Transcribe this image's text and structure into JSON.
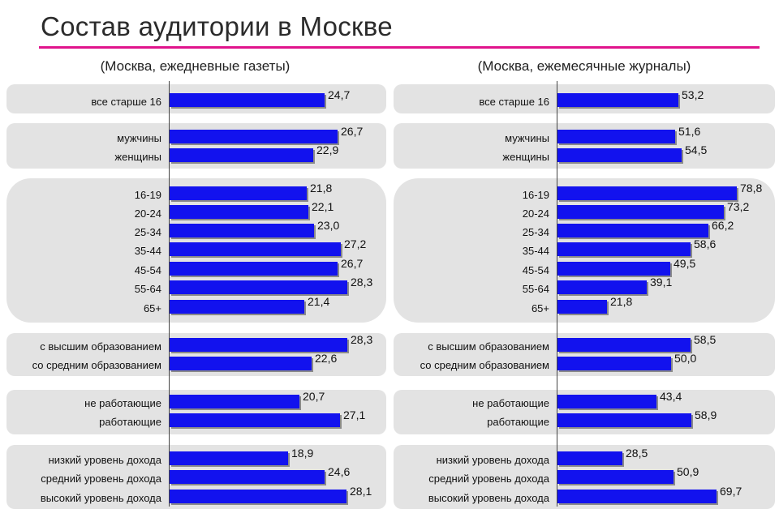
{
  "title": "Состав аудитории в Москве",
  "chart_data": [
    {
      "type": "bar",
      "orientation": "horizontal",
      "title": "(Москва, ежедневные газеты)",
      "categories": [
        "все старше 16",
        "мужчины",
        "женщины",
        "16-19",
        "20-24",
        "25-34",
        "35-44",
        "45-54",
        "55-64",
        "65+",
        "с высшим образованием",
        "со средним образованием",
        "не работающие",
        "работающие",
        "низкий уровень дохода",
        "средний уровень дохода",
        "высокий уровень дохода"
      ],
      "values": [
        24.7,
        26.7,
        22.9,
        21.8,
        22.1,
        23.0,
        27.2,
        26.7,
        28.3,
        21.4,
        28.3,
        22.6,
        20.7,
        27.1,
        18.9,
        24.6,
        28.1
      ],
      "value_labels": [
        "24,7",
        "26,7",
        "22,9",
        "21,8",
        "22,1",
        "23,0",
        "27,2",
        "26,7",
        "28,3",
        "21,4",
        "28,3",
        "22,6",
        "20,7",
        "27,1",
        "18,9",
        "24,6",
        "28,1"
      ],
      "xlim": [
        0,
        40
      ]
    },
    {
      "type": "bar",
      "orientation": "horizontal",
      "title": "(Москва, ежемесячные журналы)",
      "categories": [
        "все старше 16",
        "мужчины",
        "женщины",
        "16-19",
        "20-24",
        "25-34",
        "35-44",
        "45-54",
        "55-64",
        "65+",
        "с высшим образованием",
        "со средним образованием",
        "не работающие",
        "работающие",
        "низкий уровень дохода",
        "средний уровень дохода",
        "высокий уровень дохода"
      ],
      "values": [
        53.2,
        51.6,
        54.5,
        78.8,
        73.2,
        66.2,
        58.6,
        49.5,
        39.1,
        21.8,
        58.5,
        50.0,
        43.4,
        58.9,
        28.5,
        50.9,
        69.7
      ],
      "value_labels": [
        "53,2",
        "51,6",
        "54,5",
        "78,8",
        "73,2",
        "66,2",
        "58,6",
        "49,5",
        "39,1",
        "21,8",
        "58,5",
        "50,0",
        "43,4",
        "58,9",
        "28,5",
        "50,9",
        "69,7"
      ],
      "xlim": [
        0,
        88
      ]
    }
  ],
  "groups": [
    [
      0
    ],
    [
      1,
      2
    ],
    [
      3,
      4,
      5,
      6,
      7,
      8,
      9
    ],
    [
      10,
      11
    ],
    [
      12,
      13
    ],
    [
      14,
      15,
      16
    ]
  ],
  "colors": {
    "bar": "#1212ee",
    "accent": "#e0138c",
    "group_bg": "#e3e3e3"
  }
}
